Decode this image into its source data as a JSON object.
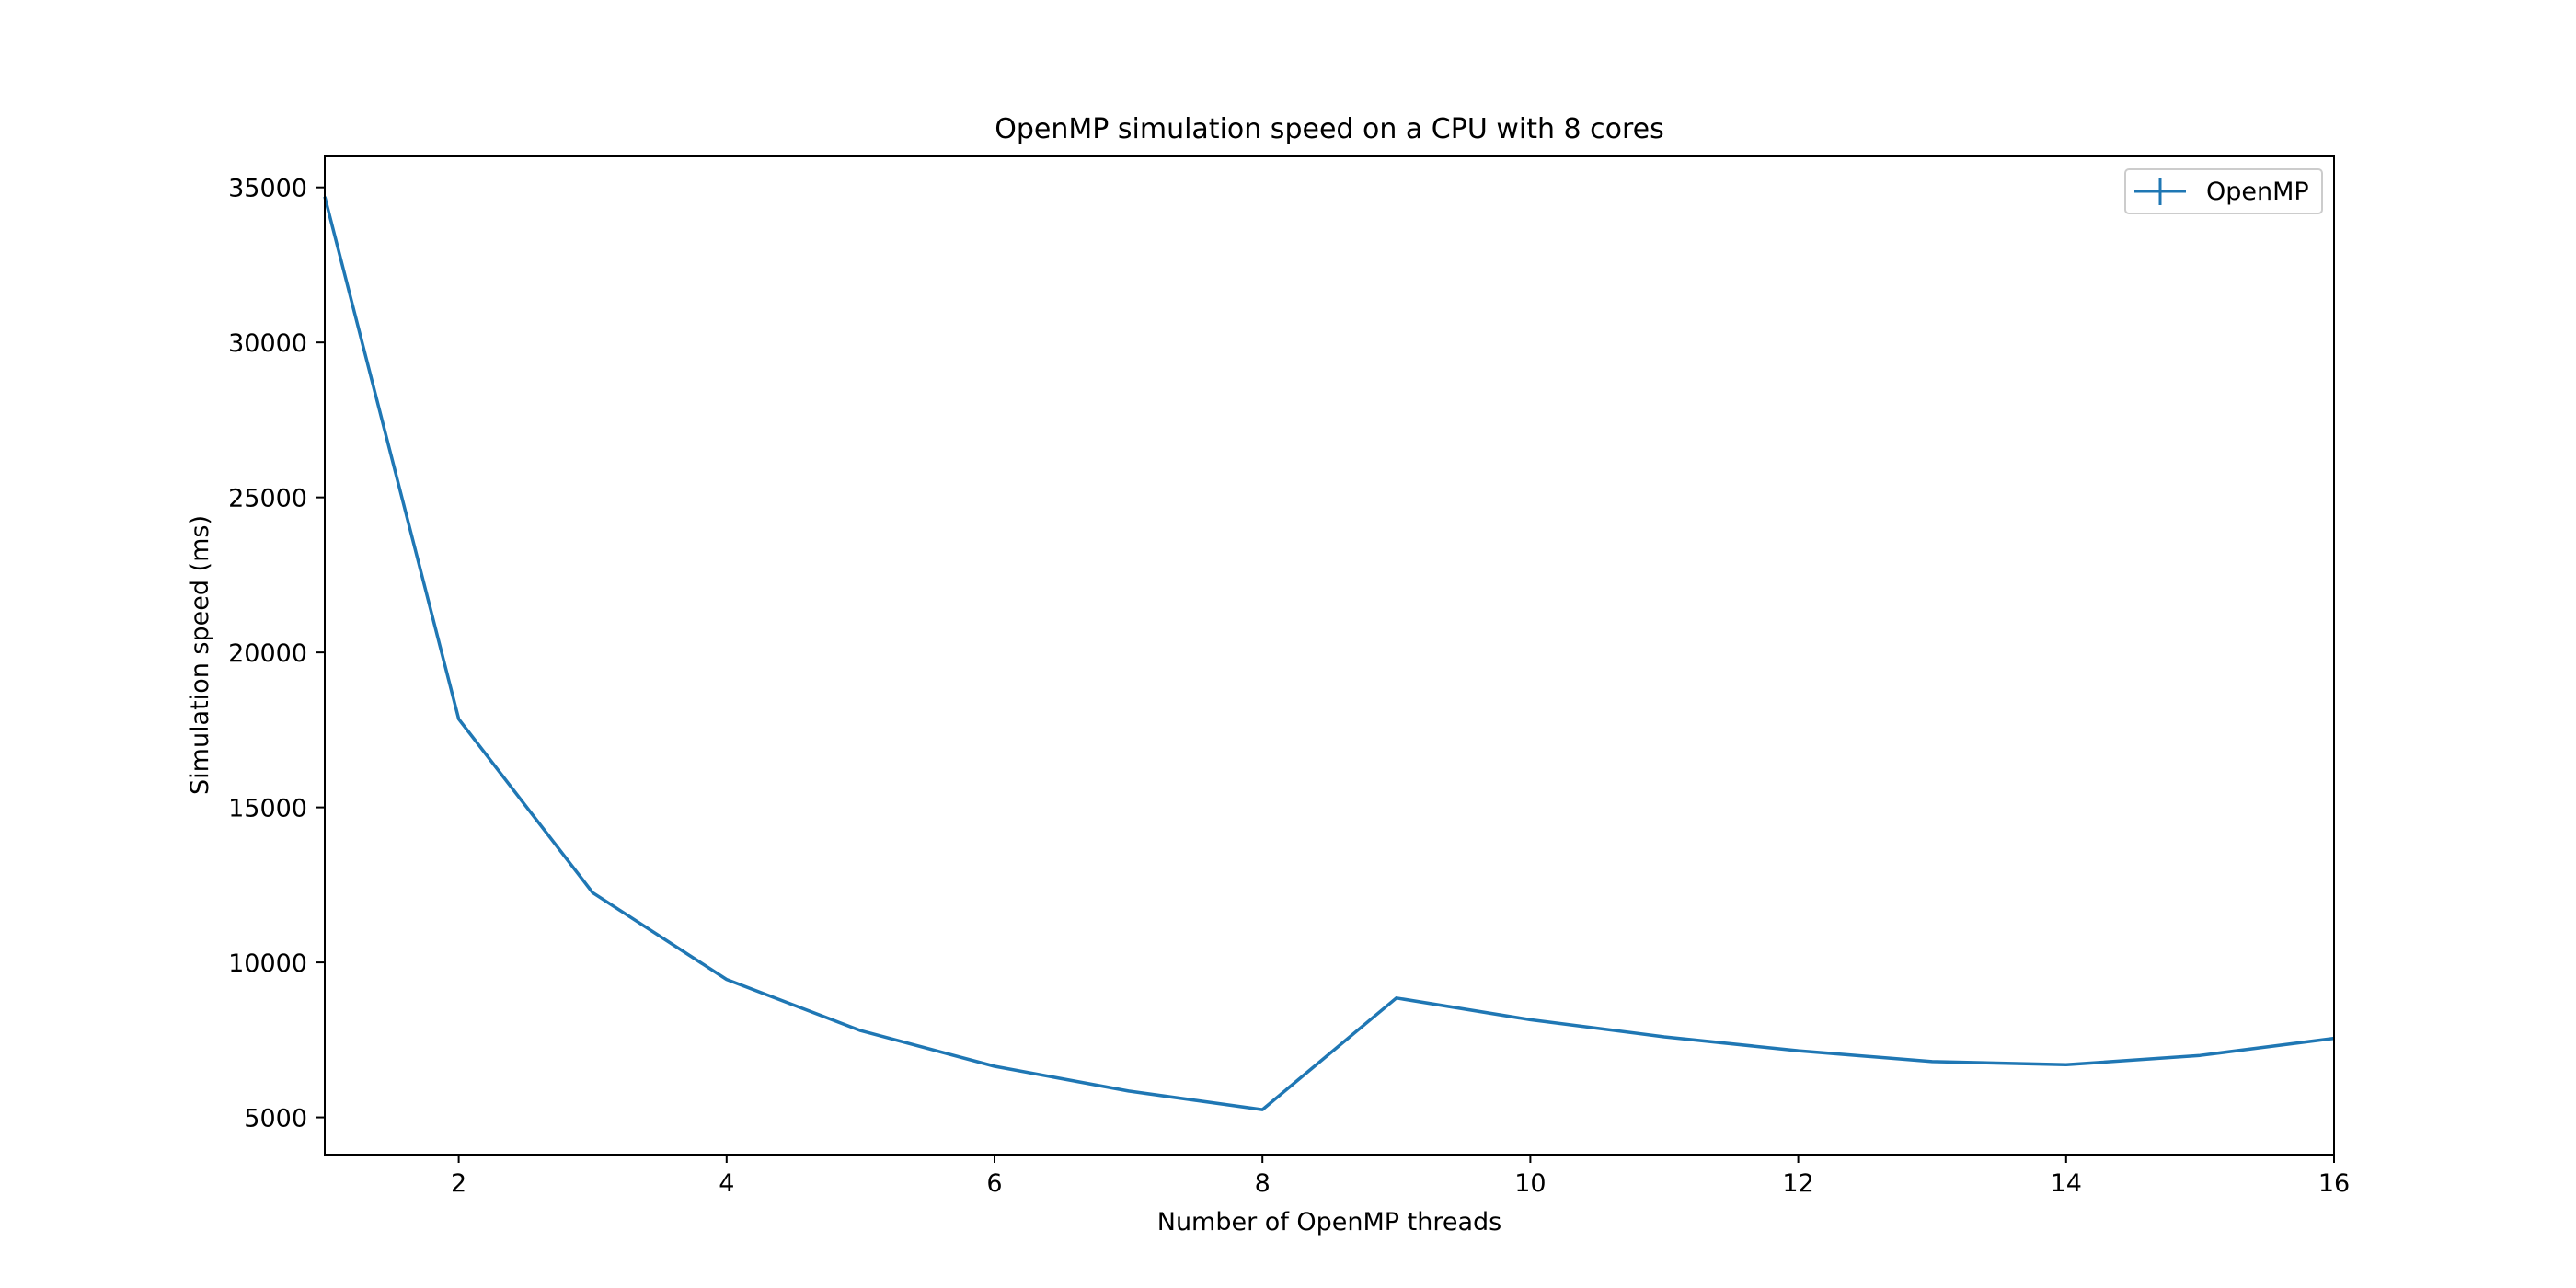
{
  "chart_data": {
    "type": "line",
    "title": "OpenMP simulation speed on a CPU with 8 cores",
    "xlabel": "Number of OpenMP threads",
    "ylabel": "Simulation speed (ms)",
    "xlim": [
      1,
      16
    ],
    "ylim": [
      3800,
      36000
    ],
    "x_ticks": [
      2,
      4,
      6,
      8,
      10,
      12,
      14,
      16
    ],
    "y_ticks": [
      5000,
      10000,
      15000,
      20000,
      25000,
      30000,
      35000
    ],
    "grid": false,
    "legend_position": "top-right",
    "series": [
      {
        "name": "OpenMP",
        "color": "#1f77b4",
        "x": [
          1,
          2,
          3,
          4,
          5,
          6,
          7,
          8,
          9,
          10,
          11,
          12,
          13,
          14,
          15,
          16
        ],
        "y": [
          34700,
          17850,
          12250,
          9450,
          7800,
          6650,
          5850,
          5250,
          8850,
          8150,
          7600,
          7150,
          6800,
          6700,
          7000,
          7550
        ]
      }
    ]
  }
}
